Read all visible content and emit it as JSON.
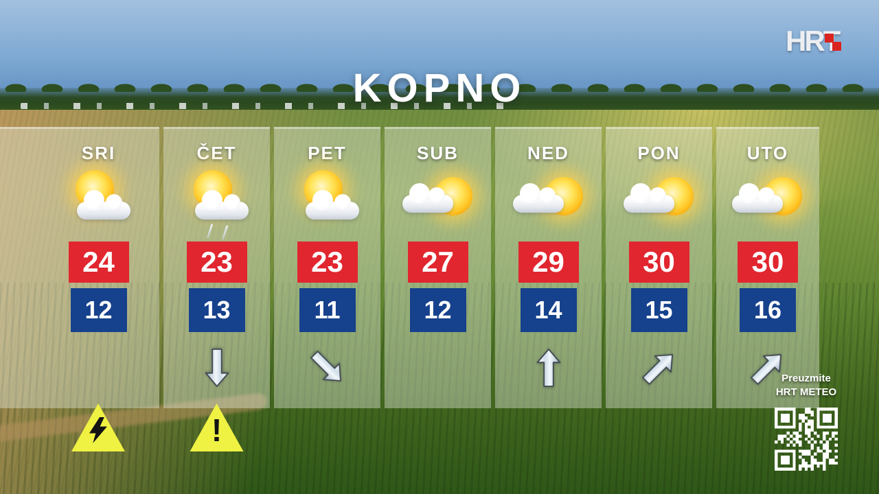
{
  "header": {
    "logo_text": "HRT",
    "title": "KOPNO"
  },
  "days": [
    {
      "label": "SRI",
      "icon": "sun-cloud",
      "high": "24",
      "low": "12",
      "trend": "",
      "warning": "lightning"
    },
    {
      "label": "ČET",
      "icon": "sun-cloud-rain",
      "high": "23",
      "low": "13",
      "trend": "down",
      "warning": "exclamation"
    },
    {
      "label": "PET",
      "icon": "sun-cloud",
      "high": "23",
      "low": "11",
      "trend": "down-right",
      "warning": ""
    },
    {
      "label": "SUB",
      "icon": "cloud-sun",
      "high": "27",
      "low": "12",
      "trend": "",
      "warning": ""
    },
    {
      "label": "NED",
      "icon": "cloud-sun",
      "high": "29",
      "low": "14",
      "trend": "up",
      "warning": ""
    },
    {
      "label": "PON",
      "icon": "cloud-sun",
      "high": "30",
      "low": "15",
      "trend": "up-right",
      "warning": ""
    },
    {
      "label": "UTO",
      "icon": "cloud-sun",
      "high": "30",
      "low": "16",
      "trend": "up-right",
      "warning": ""
    }
  ],
  "chart_data": {
    "type": "table",
    "title": "KOPNO",
    "categories": [
      "SRI",
      "ČET",
      "PET",
      "SUB",
      "NED",
      "PON",
      "UTO"
    ],
    "series": [
      {
        "name": "high_temperature_c",
        "values": [
          24,
          23,
          23,
          27,
          29,
          30,
          30
        ]
      },
      {
        "name": "low_temperature_c",
        "values": [
          12,
          13,
          11,
          12,
          14,
          15,
          16
        ]
      }
    ]
  },
  "promo": {
    "line1": "Preuzmite",
    "line2": "HRT METEO",
    "qr_icon": "qr-code"
  },
  "colors": {
    "high_box": "#e1262f",
    "low_box": "#16418c",
    "warning_yellow": "#f0f243",
    "logo_red": "#da241f",
    "temp_text": "#ffffff"
  }
}
